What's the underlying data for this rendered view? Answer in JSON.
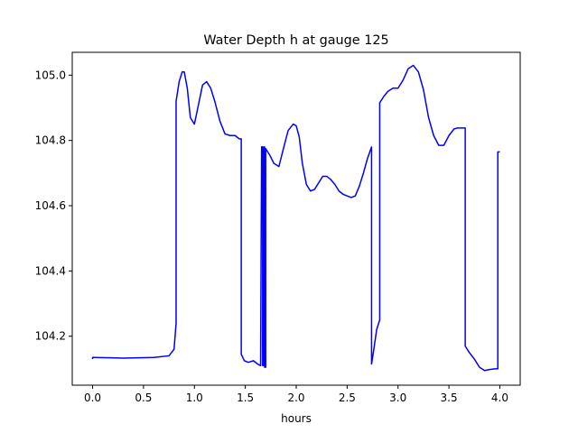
{
  "chart_data": {
    "type": "line",
    "title": "Water Depth h at gauge 125",
    "xlabel": "hours",
    "ylabel": "",
    "xlim": [
      -0.2,
      4.2
    ],
    "ylim": [
      104.05,
      105.07
    ],
    "xticks": [
      0.0,
      0.5,
      1.0,
      1.5,
      2.0,
      2.5,
      3.0,
      3.5,
      4.0
    ],
    "xtick_labels": [
      "0.0",
      "0.5",
      "1.0",
      "1.5",
      "2.0",
      "2.5",
      "3.0",
      "3.5",
      "4.0"
    ],
    "yticks": [
      104.2,
      104.4,
      104.6,
      104.8,
      105.0
    ],
    "ytick_labels": [
      "104.2",
      "104.4",
      "104.6",
      "104.8",
      "105.0"
    ],
    "grid": false,
    "legend": "none",
    "series": [
      {
        "color": "#0000ff",
        "x": [
          0.0,
          0.0,
          0.02,
          0.3,
          0.6,
          0.75,
          0.8,
          0.82,
          0.82,
          0.85,
          0.88,
          0.9,
          0.93,
          0.96,
          1.0,
          1.04,
          1.08,
          1.12,
          1.16,
          1.2,
          1.25,
          1.3,
          1.35,
          1.4,
          1.44,
          1.46,
          1.46,
          1.49,
          1.53,
          1.58,
          1.62,
          1.65,
          1.66,
          1.67,
          1.67,
          1.68,
          1.68,
          1.69,
          1.69,
          1.7,
          1.7,
          1.74,
          1.78,
          1.83,
          1.87,
          1.92,
          1.97,
          2.0,
          2.03,
          2.06,
          2.1,
          2.14,
          2.18,
          2.22,
          2.26,
          2.3,
          2.34,
          2.38,
          2.42,
          2.46,
          2.5,
          2.54,
          2.58,
          2.62,
          2.66,
          2.7,
          2.74,
          2.74,
          2.76,
          2.79,
          2.82,
          2.82,
          2.86,
          2.9,
          2.95,
          3.0,
          3.05,
          3.1,
          3.15,
          3.2,
          3.25,
          3.3,
          3.35,
          3.4,
          3.45,
          3.5,
          3.55,
          3.58,
          3.62,
          3.66,
          3.66,
          3.7,
          3.75,
          3.8,
          3.85,
          3.9,
          3.95,
          3.98,
          3.98,
          4.0
        ],
        "y": [
          104.13,
          104.135,
          104.135,
          104.133,
          104.135,
          104.14,
          104.16,
          104.24,
          104.92,
          104.98,
          105.01,
          105.01,
          104.96,
          104.87,
          104.85,
          104.91,
          104.97,
          104.98,
          104.96,
          104.92,
          104.86,
          104.82,
          104.815,
          104.815,
          104.805,
          104.805,
          104.145,
          104.125,
          104.12,
          104.125,
          104.115,
          104.11,
          104.78,
          104.78,
          104.11,
          104.11,
          104.78,
          104.78,
          104.105,
          104.105,
          104.775,
          104.755,
          104.73,
          104.72,
          104.77,
          104.83,
          104.85,
          104.845,
          104.81,
          104.73,
          104.665,
          104.645,
          104.65,
          104.67,
          104.69,
          104.69,
          104.68,
          104.665,
          104.645,
          104.635,
          104.63,
          104.625,
          104.63,
          104.66,
          104.7,
          104.745,
          104.78,
          104.115,
          104.155,
          104.22,
          104.25,
          104.915,
          104.935,
          104.95,
          104.96,
          104.96,
          104.985,
          105.02,
          105.03,
          105.01,
          104.955,
          104.87,
          104.815,
          104.785,
          104.785,
          104.815,
          104.835,
          104.838,
          104.838,
          104.838,
          104.17,
          104.15,
          104.13,
          104.105,
          104.095,
          104.098,
          104.1,
          104.1,
          104.765,
          104.765
        ]
      }
    ]
  }
}
